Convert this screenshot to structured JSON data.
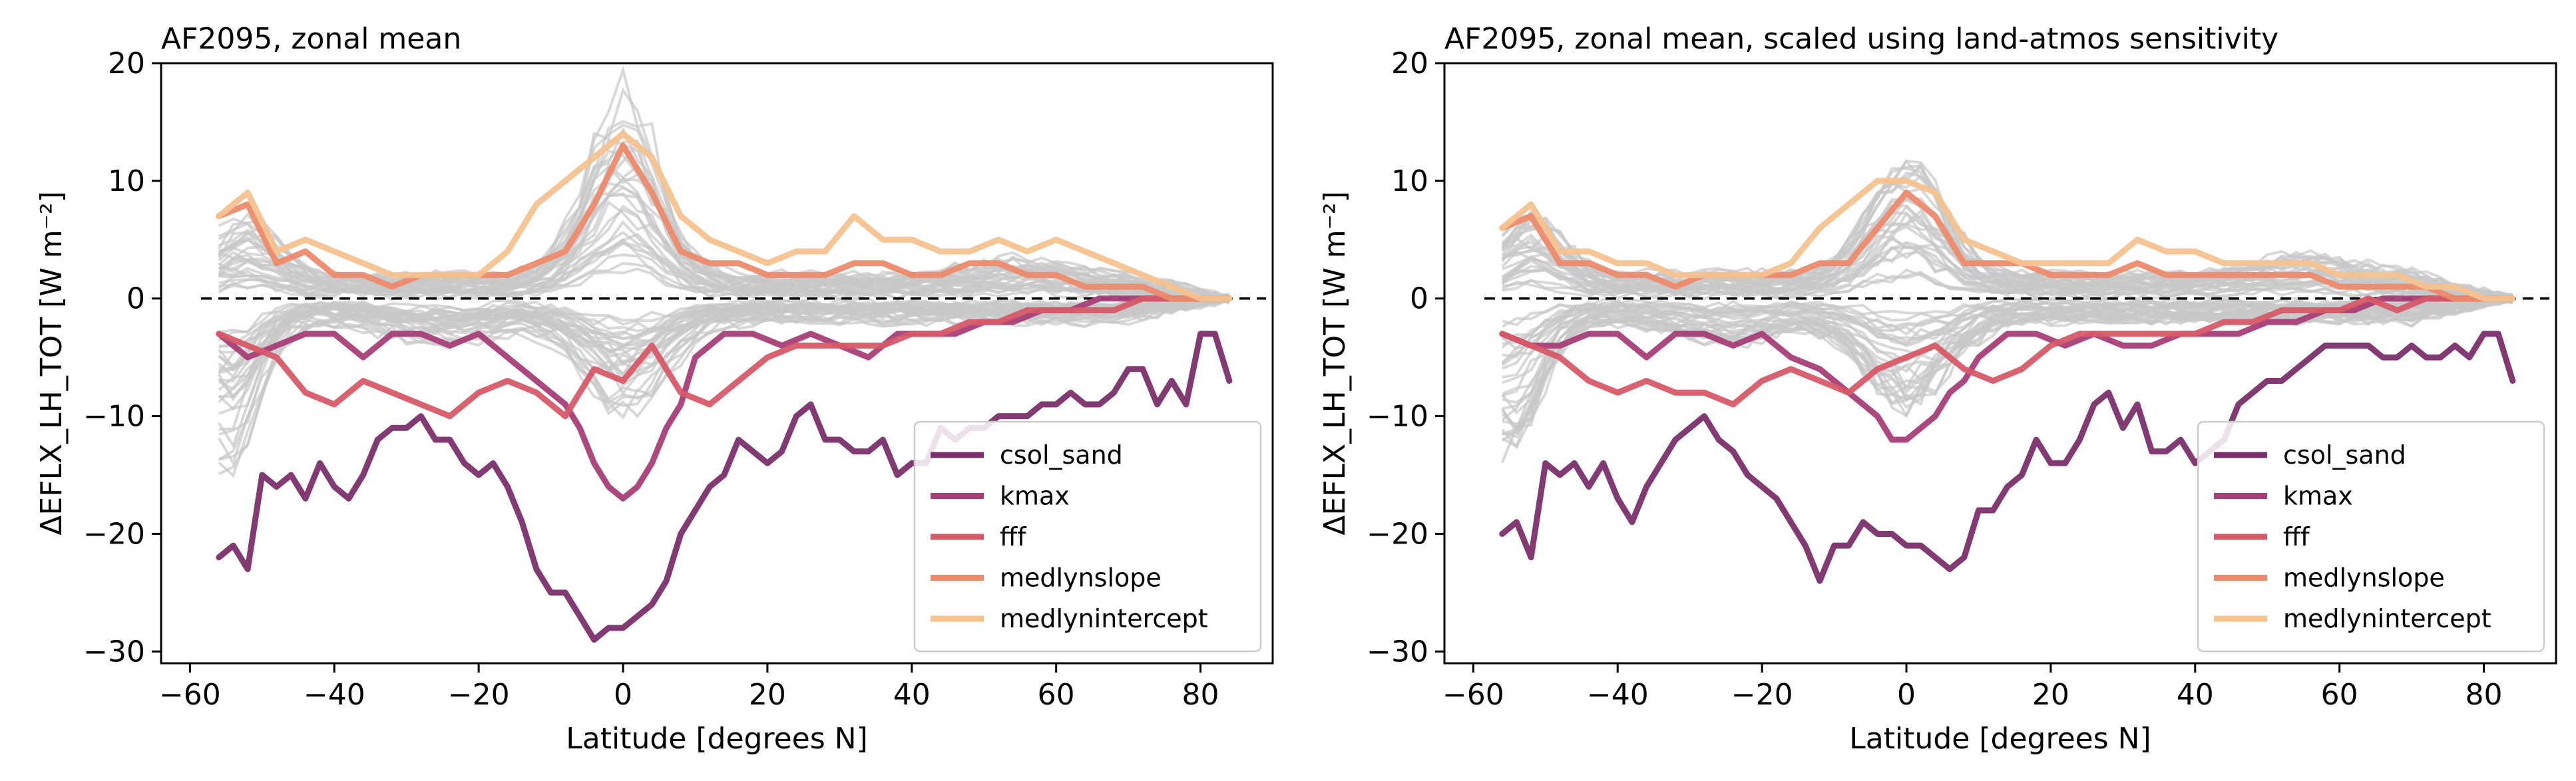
{
  "figure": {
    "background_line_color": "#c8c8c8",
    "zero_line_color": "#000000"
  },
  "chart_data": [
    {
      "type": "line",
      "title": "AF2095, zonal mean",
      "xlabel": "Latitude [degrees N]",
      "ylabel": "ΔEFLX_LH_TOT [W m⁻²]",
      "xlim": [
        -64,
        90
      ],
      "ylim": [
        -31,
        20
      ],
      "xticks": [
        -60,
        -40,
        -20,
        0,
        20,
        40,
        60,
        80
      ],
      "yticks": [
        20,
        10,
        0,
        -10,
        -20,
        -30
      ],
      "xtick_labels": [
        "−60",
        "−40",
        "−20",
        "0",
        "20",
        "40",
        "60",
        "80"
      ],
      "ytick_labels": [
        "20",
        "10",
        "0",
        "−10",
        "−20",
        "−30"
      ],
      "grid": false,
      "legend_position": "lower-right",
      "reference_line": {
        "y": 0,
        "style": "dashed"
      },
      "background_ensemble": {
        "count": 60,
        "color": "#c8c8c8",
        "envelope_upper_max": 18,
        "envelope_lower_min": -17
      },
      "series": [
        {
          "name": "csol_sand",
          "color": "#7b2f6b",
          "x": [
            -56,
            -54,
            -52,
            -50,
            -48,
            -46,
            -44,
            -42,
            -40,
            -38,
            -36,
            -34,
            -32,
            -30,
            -28,
            -26,
            -24,
            -22,
            -20,
            -18,
            -16,
            -14,
            -12,
            -10,
            -8,
            -6,
            -4,
            -2,
            0,
            2,
            4,
            6,
            8,
            10,
            12,
            14,
            16,
            18,
            20,
            22,
            24,
            26,
            28,
            30,
            32,
            34,
            36,
            38,
            40,
            42,
            44,
            46,
            48,
            50,
            52,
            54,
            56,
            58,
            60,
            62,
            64,
            66,
            68,
            70,
            72,
            74,
            76,
            78,
            80,
            82,
            84
          ],
          "y": [
            -22,
            -21,
            -23,
            -15,
            -16,
            -15,
            -17,
            -14,
            -16,
            -17,
            -15,
            -12,
            -11,
            -11,
            -10,
            -12,
            -12,
            -14,
            -15,
            -14,
            -16,
            -19,
            -23,
            -25,
            -25,
            -27,
            -29,
            -28,
            -28,
            -27,
            -26,
            -24,
            -20,
            -18,
            -16,
            -15,
            -12,
            -13,
            -14,
            -13,
            -10,
            -9,
            -12,
            -12,
            -13,
            -13,
            -12,
            -15,
            -14,
            -14,
            -11,
            -12,
            -11,
            -11,
            -10,
            -10,
            -10,
            -9,
            -9,
            -8,
            -9,
            -9,
            -8,
            -6,
            -6,
            -9,
            -7,
            -9,
            -3,
            -3,
            -7
          ]
        },
        {
          "name": "kmax",
          "color": "#a63f78",
          "x": [
            -56,
            -52,
            -48,
            -44,
            -40,
            -36,
            -32,
            -28,
            -24,
            -20,
            -16,
            -12,
            -8,
            -6,
            -4,
            -2,
            0,
            2,
            4,
            6,
            8,
            10,
            14,
            18,
            22,
            26,
            30,
            34,
            38,
            42,
            46,
            50,
            54,
            58,
            62,
            66,
            70,
            74,
            78,
            82,
            84
          ],
          "y": [
            -3,
            -5,
            -4,
            -3,
            -3,
            -5,
            -3,
            -3,
            -4,
            -3,
            -5,
            -7,
            -9,
            -11,
            -14,
            -16,
            -17,
            -16,
            -14,
            -11,
            -9,
            -5,
            -3,
            -3,
            -4,
            -3,
            -4,
            -5,
            -3,
            -3,
            -3,
            -2,
            -2,
            -1,
            -1,
            0,
            0,
            0,
            0,
            0,
            0
          ]
        },
        {
          "name": "fff",
          "color": "#d65a68",
          "x": [
            -56,
            -52,
            -48,
            -44,
            -40,
            -36,
            -32,
            -28,
            -24,
            -20,
            -16,
            -12,
            -8,
            -4,
            0,
            4,
            8,
            12,
            16,
            20,
            24,
            28,
            32,
            36,
            40,
            44,
            48,
            52,
            56,
            60,
            64,
            68,
            72,
            76,
            80,
            84
          ],
          "y": [
            -3,
            -4,
            -5,
            -8,
            -9,
            -7,
            -8,
            -9,
            -10,
            -8,
            -7,
            -8,
            -10,
            -6,
            -7,
            -4,
            -8,
            -9,
            -7,
            -5,
            -4,
            -4,
            -4,
            -4,
            -3,
            -3,
            -2,
            -2,
            -1,
            -1,
            -1,
            -1,
            0,
            0,
            0,
            0
          ]
        },
        {
          "name": "medlynslope",
          "color": "#ec8a6b",
          "x": [
            -56,
            -52,
            -48,
            -44,
            -40,
            -36,
            -32,
            -28,
            -24,
            -20,
            -16,
            -12,
            -8,
            -4,
            0,
            4,
            8,
            12,
            16,
            20,
            24,
            28,
            32,
            36,
            40,
            44,
            48,
            52,
            56,
            60,
            64,
            68,
            72,
            76,
            80,
            84
          ],
          "y": [
            7,
            8,
            3,
            4,
            2,
            2,
            1,
            2,
            2,
            2,
            2,
            3,
            4,
            8,
            13,
            9,
            4,
            3,
            3,
            2,
            2,
            2,
            3,
            3,
            2,
            2,
            3,
            3,
            2,
            2,
            1,
            1,
            1,
            0,
            0,
            0
          ]
        },
        {
          "name": "medlynintercept",
          "color": "#f6c28f",
          "x": [
            -56,
            -52,
            -48,
            -44,
            -40,
            -36,
            -32,
            -28,
            -24,
            -20,
            -16,
            -12,
            -8,
            -4,
            0,
            4,
            8,
            12,
            16,
            20,
            24,
            28,
            32,
            36,
            40,
            44,
            48,
            52,
            56,
            60,
            64,
            68,
            72,
            76,
            80,
            84
          ],
          "y": [
            7,
            9,
            4,
            5,
            4,
            3,
            2,
            2,
            2,
            2,
            4,
            8,
            10,
            12,
            14,
            12,
            7,
            5,
            4,
            3,
            4,
            4,
            7,
            5,
            5,
            4,
            4,
            5,
            4,
            5,
            4,
            3,
            2,
            1,
            0,
            0
          ]
        }
      ]
    },
    {
      "type": "line",
      "title": "AF2095, zonal mean, scaled using land-atmos sensitivity",
      "xlabel": "Latitude [degrees N]",
      "ylabel": "ΔEFLX_LH_TOT [W m⁻²]",
      "xlim": [
        -64,
        90
      ],
      "ylim": [
        -31,
        20
      ],
      "xticks": [
        -60,
        -40,
        -20,
        0,
        20,
        40,
        60,
        80
      ],
      "yticks": [
        20,
        10,
        0,
        -10,
        -20,
        -30
      ],
      "xtick_labels": [
        "−60",
        "−40",
        "−20",
        "0",
        "20",
        "40",
        "60",
        "80"
      ],
      "ytick_labels": [
        "20",
        "10",
        "0",
        "−10",
        "−20",
        "−30"
      ],
      "grid": false,
      "legend_position": "lower-right",
      "reference_line": {
        "y": 0,
        "style": "dashed"
      },
      "background_ensemble": {
        "count": 60,
        "color": "#c8c8c8",
        "envelope_upper_max": 13,
        "envelope_lower_min": -16
      },
      "series": [
        {
          "name": "csol_sand",
          "color": "#7b2f6b",
          "x": [
            -56,
            -54,
            -52,
            -50,
            -48,
            -46,
            -44,
            -42,
            -40,
            -38,
            -36,
            -34,
            -32,
            -30,
            -28,
            -26,
            -24,
            -22,
            -20,
            -18,
            -16,
            -14,
            -12,
            -10,
            -8,
            -6,
            -4,
            -2,
            0,
            2,
            4,
            6,
            8,
            10,
            12,
            14,
            16,
            18,
            20,
            22,
            24,
            26,
            28,
            30,
            32,
            34,
            36,
            38,
            40,
            42,
            44,
            46,
            48,
            50,
            52,
            54,
            56,
            58,
            60,
            62,
            64,
            66,
            68,
            70,
            72,
            74,
            76,
            78,
            80,
            82,
            84
          ],
          "y": [
            -20,
            -19,
            -22,
            -14,
            -15,
            -14,
            -16,
            -14,
            -17,
            -19,
            -16,
            -14,
            -12,
            -11,
            -10,
            -12,
            -13,
            -15,
            -16,
            -17,
            -19,
            -21,
            -24,
            -21,
            -21,
            -19,
            -20,
            -20,
            -21,
            -21,
            -22,
            -23,
            -22,
            -18,
            -18,
            -16,
            -15,
            -12,
            -14,
            -14,
            -12,
            -9,
            -8,
            -11,
            -9,
            -13,
            -13,
            -12,
            -14,
            -13,
            -12,
            -9,
            -8,
            -7,
            -7,
            -6,
            -5,
            -4,
            -4,
            -4,
            -4,
            -5,
            -5,
            -4,
            -5,
            -5,
            -4,
            -5,
            -3,
            -3,
            -7
          ]
        },
        {
          "name": "kmax",
          "color": "#a63f78",
          "x": [
            -56,
            -52,
            -48,
            -44,
            -40,
            -36,
            -32,
            -28,
            -24,
            -20,
            -16,
            -12,
            -8,
            -6,
            -4,
            -2,
            0,
            2,
            4,
            6,
            8,
            10,
            14,
            18,
            22,
            26,
            30,
            34,
            38,
            42,
            46,
            50,
            54,
            58,
            62,
            66,
            70,
            74,
            78,
            82,
            84
          ],
          "y": [
            -3,
            -4,
            -4,
            -3,
            -3,
            -5,
            -3,
            -3,
            -4,
            -3,
            -5,
            -6,
            -8,
            -9,
            -10,
            -12,
            -12,
            -11,
            -10,
            -8,
            -7,
            -5,
            -3,
            -3,
            -4,
            -3,
            -4,
            -4,
            -3,
            -3,
            -3,
            -2,
            -2,
            -1,
            -1,
            0,
            0,
            0,
            0,
            0,
            0
          ]
        },
        {
          "name": "fff",
          "color": "#d65a68",
          "x": [
            -56,
            -52,
            -48,
            -44,
            -40,
            -36,
            -32,
            -28,
            -24,
            -20,
            -16,
            -12,
            -8,
            -4,
            0,
            4,
            8,
            12,
            16,
            20,
            24,
            28,
            32,
            36,
            40,
            44,
            48,
            52,
            56,
            60,
            64,
            68,
            72,
            76,
            80,
            84
          ],
          "y": [
            -3,
            -4,
            -5,
            -7,
            -8,
            -7,
            -8,
            -8,
            -9,
            -7,
            -6,
            -7,
            -8,
            -6,
            -5,
            -4,
            -6,
            -7,
            -6,
            -4,
            -3,
            -3,
            -3,
            -3,
            -3,
            -2,
            -2,
            -1,
            -1,
            -1,
            0,
            -1,
            0,
            0,
            0,
            0
          ]
        },
        {
          "name": "medlynslope",
          "color": "#ec8a6b",
          "x": [
            -56,
            -52,
            -48,
            -44,
            -40,
            -36,
            -32,
            -28,
            -24,
            -20,
            -16,
            -12,
            -8,
            -4,
            0,
            4,
            8,
            12,
            16,
            20,
            24,
            28,
            32,
            36,
            40,
            44,
            48,
            52,
            56,
            60,
            64,
            68,
            72,
            76,
            80,
            84
          ],
          "y": [
            6,
            7,
            3,
            3,
            2,
            2,
            1,
            2,
            2,
            2,
            2,
            3,
            3,
            6,
            9,
            7,
            3,
            3,
            3,
            2,
            2,
            2,
            3,
            2,
            2,
            2,
            2,
            2,
            2,
            1,
            1,
            1,
            1,
            0,
            0,
            0
          ]
        },
        {
          "name": "medlynintercept",
          "color": "#f6c28f",
          "x": [
            -56,
            -52,
            -48,
            -44,
            -40,
            -36,
            -32,
            -28,
            -24,
            -20,
            -16,
            -12,
            -8,
            -4,
            0,
            4,
            8,
            12,
            16,
            20,
            24,
            28,
            32,
            36,
            40,
            44,
            48,
            52,
            56,
            60,
            64,
            68,
            72,
            76,
            80,
            84
          ],
          "y": [
            6,
            8,
            4,
            4,
            3,
            3,
            2,
            2,
            2,
            2,
            3,
            6,
            8,
            10,
            10,
            9,
            5,
            4,
            3,
            3,
            3,
            3,
            5,
            4,
            4,
            3,
            3,
            3,
            3,
            2,
            2,
            2,
            1,
            1,
            0,
            0
          ]
        }
      ]
    }
  ]
}
